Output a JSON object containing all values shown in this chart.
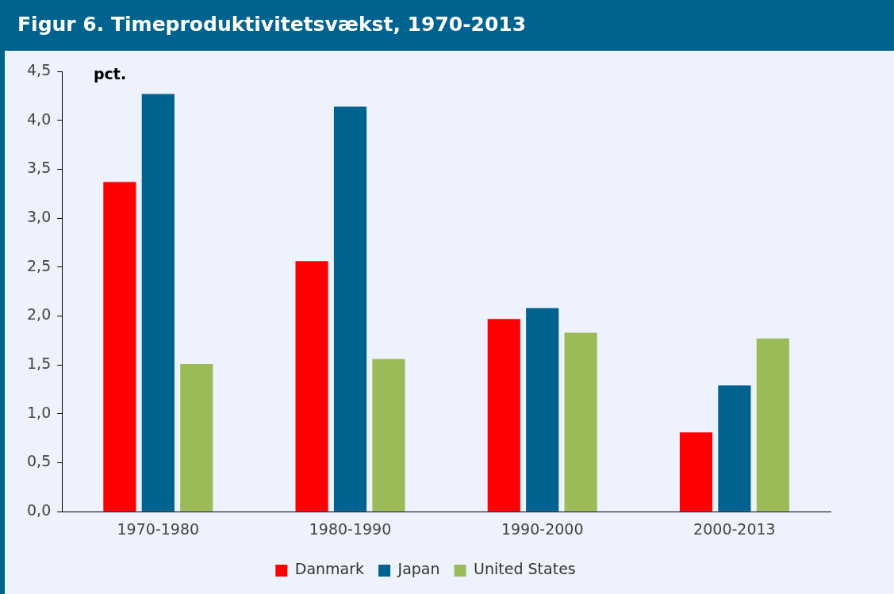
{
  "chart_data": {
    "type": "bar",
    "title": "Figur 6. Timeproduktivitetsvækst, 1970-2013",
    "ylabel": "pct.",
    "categories": [
      "1970-1980",
      "1980-1990",
      "1990-2000",
      "2000-2013"
    ],
    "series": [
      {
        "name": "Danmark",
        "color": "#ff0000",
        "values": [
          3.37,
          2.56,
          1.97,
          0.81
        ]
      },
      {
        "name": "Japan",
        "color": "#00628f",
        "values": [
          4.27,
          4.14,
          2.08,
          1.29
        ]
      },
      {
        "name": "United States",
        "color": "#9bbb59",
        "values": [
          1.51,
          1.56,
          1.83,
          1.77
        ]
      }
    ],
    "ylim": [
      0,
      4.5
    ],
    "yticks": [
      {
        "value": 0,
        "label": "0,0"
      },
      {
        "value": 0.5,
        "label": "0,5"
      },
      {
        "value": 1,
        "label": "1,0"
      },
      {
        "value": 1.5,
        "label": "1,5"
      },
      {
        "value": 2,
        "label": "2,0"
      },
      {
        "value": 2.5,
        "label": "2,5"
      },
      {
        "value": 3,
        "label": "3,0"
      },
      {
        "value": 3.5,
        "label": "3,5"
      },
      {
        "value": 4,
        "label": "4,0"
      },
      {
        "value": 4.5,
        "label": "4,5"
      }
    ],
    "grid": false,
    "legend": "bottom"
  }
}
